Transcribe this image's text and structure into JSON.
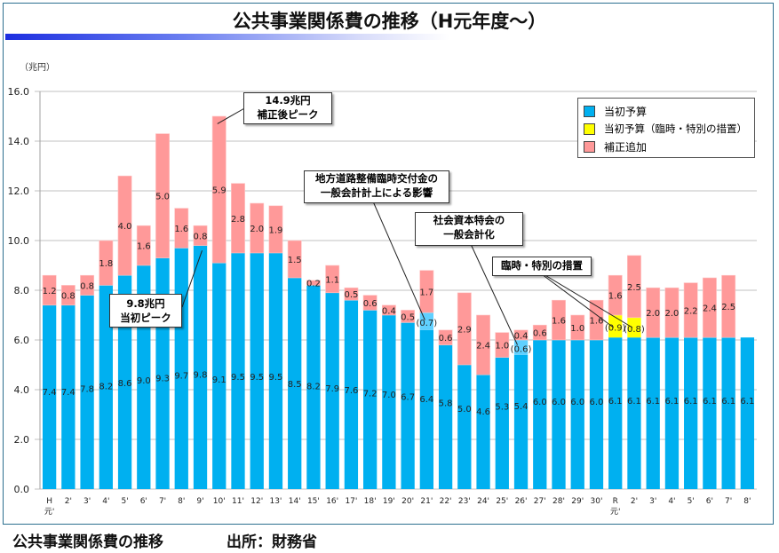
{
  "title": "公共事業関係費の推移（H元年度～）",
  "caption_left": "公共事業関係費の推移",
  "caption_right": "出所：財務省",
  "colors": {
    "base": "#00b0f0",
    "special_road": "#5fd0ff",
    "special_measure": "#ffff00",
    "supplement": "#ff9999"
  },
  "chart_data": {
    "type": "bar",
    "stacked": true,
    "title": "公共事業関係費の推移（H元年度～）",
    "ylabel": "（兆円）",
    "xlabel": "",
    "ylim": [
      0,
      16
    ],
    "yticks": [
      "0.0",
      "2.0",
      "4.0",
      "6.0",
      "8.0",
      "10.0",
      "12.0",
      "14.0",
      "16.0"
    ],
    "grid": true,
    "legend_position": "top-right",
    "categories": [
      "H元'",
      "2'",
      "3'",
      "4'",
      "5'",
      "6'",
      "7'",
      "8'",
      "9'",
      "10'",
      "11'",
      "12'",
      "13'",
      "14'",
      "15'",
      "16'",
      "17'",
      "18'",
      "19'",
      "20'",
      "21'",
      "22'",
      "23'",
      "24'",
      "25'",
      "26'",
      "27'",
      "28'",
      "29'",
      "30'",
      "R元'",
      "2'",
      "3'",
      "4'",
      "5'",
      "6'",
      "7'",
      "8'"
    ],
    "category_lines": [
      [
        "H",
        "元'"
      ],
      [
        "2'"
      ],
      [
        "3'"
      ],
      [
        "4'"
      ],
      [
        "5'"
      ],
      [
        "6'"
      ],
      [
        "7'"
      ],
      [
        "8'"
      ],
      [
        "9'"
      ],
      [
        "10'"
      ],
      [
        "11'"
      ],
      [
        "12'"
      ],
      [
        "13'"
      ],
      [
        "14'"
      ],
      [
        "15'"
      ],
      [
        "16'"
      ],
      [
        "17'"
      ],
      [
        "18'"
      ],
      [
        "19'"
      ],
      [
        "20'"
      ],
      [
        "21'"
      ],
      [
        "22'"
      ],
      [
        "23'"
      ],
      [
        "24'"
      ],
      [
        "25'"
      ],
      [
        "26'"
      ],
      [
        "27'"
      ],
      [
        "28'"
      ],
      [
        "29'"
      ],
      [
        "30'"
      ],
      [
        "R",
        "元'"
      ],
      [
        "2'"
      ],
      [
        "3'"
      ],
      [
        "4'"
      ],
      [
        "5'"
      ],
      [
        "6'"
      ],
      [
        "7'"
      ],
      [
        "8'"
      ]
    ],
    "series": [
      {
        "name": "当初予算",
        "key": "base",
        "values": [
          7.4,
          7.4,
          7.8,
          8.2,
          8.6,
          9.0,
          9.3,
          9.7,
          9.8,
          9.1,
          9.5,
          9.5,
          9.5,
          8.5,
          8.2,
          7.9,
          7.6,
          7.2,
          7.0,
          6.7,
          6.4,
          5.8,
          5.0,
          4.6,
          5.3,
          5.4,
          6.0,
          6.0,
          6.0,
          6.0,
          6.1,
          6.1,
          6.1,
          6.1,
          6.1,
          6.1,
          6.1,
          6.1
        ]
      },
      {
        "name": "（一般会計計上による影響）",
        "key": "special_road",
        "in_legend": false,
        "label_format": "paren",
        "values": [
          null,
          null,
          null,
          null,
          null,
          null,
          null,
          null,
          null,
          null,
          null,
          null,
          null,
          null,
          null,
          null,
          null,
          null,
          null,
          null,
          0.7,
          null,
          null,
          null,
          null,
          0.6,
          null,
          null,
          null,
          null,
          null,
          null,
          null,
          null,
          null,
          null,
          null,
          null
        ]
      },
      {
        "name": "当初予算（臨時・特別の措置）",
        "key": "special_measure",
        "label_format": "paren",
        "values": [
          null,
          null,
          null,
          null,
          null,
          null,
          null,
          null,
          null,
          null,
          null,
          null,
          null,
          null,
          null,
          null,
          null,
          null,
          null,
          null,
          null,
          null,
          null,
          null,
          null,
          null,
          null,
          null,
          null,
          null,
          0.9,
          0.8,
          null,
          null,
          null,
          null,
          null,
          null
        ]
      },
      {
        "name": "補正追加",
        "key": "supplement",
        "values": [
          1.2,
          0.8,
          0.8,
          1.8,
          4.0,
          1.6,
          5.0,
          1.6,
          0.8,
          5.9,
          2.8,
          2.0,
          1.9,
          1.5,
          0.2,
          1.1,
          0.5,
          0.6,
          0.4,
          0.5,
          1.7,
          0.6,
          2.9,
          2.4,
          1.0,
          0.4,
          0.6,
          1.6,
          1.0,
          1.6,
          1.6,
          2.5,
          2.0,
          2.0,
          2.2,
          2.4,
          2.5,
          null
        ]
      }
    ],
    "legend": [
      "当初予算",
      "当初予算（臨時・特別の措置）",
      "補正追加"
    ],
    "annotations": [
      {
        "lines": [
          "14.9兆円",
          "補正後ピーク"
        ],
        "target_index": 9,
        "target_value": 14.9
      },
      {
        "lines": [
          "9.8兆円",
          "当初ピーク"
        ],
        "target_index": 8,
        "target_value": 9.8
      },
      {
        "lines": [
          "地方道路整備臨時交付金の",
          "一般会計計上による影響"
        ],
        "target_index": 20,
        "target_value": 6.7
      },
      {
        "lines": [
          "社会資本特会の",
          "一般会計化"
        ],
        "target_index": 25,
        "target_value": 5.8
      },
      {
        "lines": [
          "臨時・特別の措置"
        ],
        "target_index": [
          30,
          31
        ],
        "target_value": 6.5
      }
    ]
  }
}
